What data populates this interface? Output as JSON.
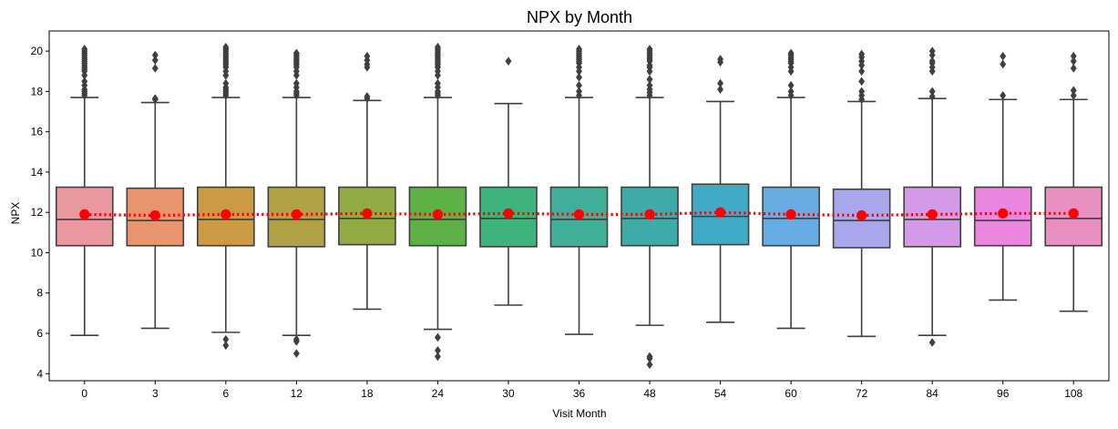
{
  "chart_data": {
    "type": "box",
    "title": "NPX by Month",
    "xlabel": "Visit Month",
    "ylabel": "NPX",
    "ylim": [
      3.65,
      21.0
    ],
    "yticks": [
      4,
      6,
      8,
      10,
      12,
      14,
      16,
      18,
      20
    ],
    "ytick_labels": [
      "4",
      "6",
      "8",
      "10",
      "12",
      "14",
      "16",
      "18",
      "20"
    ],
    "categories": [
      "0",
      "3",
      "6",
      "12",
      "18",
      "24",
      "30",
      "36",
      "48",
      "54",
      "60",
      "72",
      "84",
      "96",
      "108"
    ],
    "colors": [
      "#EA97A0",
      "#E8956F",
      "#CB9A45",
      "#B0A147",
      "#93AB44",
      "#5EB245",
      "#3EB37B",
      "#40AF99",
      "#3EABA9",
      "#40ABC5",
      "#67ADE4",
      "#A9A7EC",
      "#D49AE8",
      "#EB86DF",
      "#E890C0"
    ],
    "boxes": [
      {
        "q1": 10.35,
        "median": 11.65,
        "q3": 13.25,
        "whisker_low": 5.9,
        "whisker_high": 17.7,
        "mean": 11.9,
        "outliers": [
          17.8,
          17.9,
          18.0,
          18.1,
          18.3,
          18.5,
          18.8,
          19.0,
          19.1,
          19.2,
          19.3,
          19.4,
          19.5,
          19.6,
          19.7,
          19.8,
          19.9,
          20.0,
          20.1
        ]
      },
      {
        "q1": 10.35,
        "median": 11.6,
        "q3": 13.2,
        "whisker_low": 6.25,
        "whisker_high": 17.45,
        "mean": 11.85,
        "outliers": [
          17.6,
          17.65,
          19.15,
          19.55,
          19.8
        ]
      },
      {
        "q1": 10.35,
        "median": 11.65,
        "q3": 13.25,
        "whisker_low": 6.05,
        "whisker_high": 17.7,
        "mean": 11.9,
        "outliers": [
          5.4,
          5.7,
          17.8,
          17.9,
          18.0,
          18.1,
          18.2,
          18.4,
          18.8,
          19.0,
          19.2,
          19.3,
          19.4,
          19.5,
          19.6,
          19.7,
          19.8,
          19.9,
          20.0,
          20.1,
          20.2
        ]
      },
      {
        "q1": 10.3,
        "median": 11.65,
        "q3": 13.25,
        "whisker_low": 5.9,
        "whisker_high": 17.7,
        "mean": 11.9,
        "outliers": [
          5.0,
          5.6,
          5.7,
          17.8,
          17.9,
          18.0,
          18.2,
          18.4,
          18.8,
          19.0,
          19.2,
          19.3,
          19.4,
          19.5,
          19.6,
          19.7,
          19.8,
          19.9
        ]
      },
      {
        "q1": 10.4,
        "median": 11.7,
        "q3": 13.25,
        "whisker_low": 7.2,
        "whisker_high": 17.55,
        "mean": 11.95,
        "outliers": [
          17.65,
          17.75,
          19.2,
          19.35,
          19.55,
          19.75
        ]
      },
      {
        "q1": 10.35,
        "median": 11.65,
        "q3": 13.25,
        "whisker_low": 6.2,
        "whisker_high": 17.7,
        "mean": 11.9,
        "outliers": [
          4.85,
          5.15,
          5.8,
          17.8,
          17.9,
          18.0,
          18.2,
          18.4,
          18.8,
          19.0,
          19.2,
          19.3,
          19.4,
          19.5,
          19.6,
          19.7,
          19.8,
          19.9,
          20.0,
          20.1,
          20.2
        ]
      },
      {
        "q1": 10.3,
        "median": 11.7,
        "q3": 13.25,
        "whisker_low": 7.4,
        "whisker_high": 17.4,
        "mean": 11.95,
        "outliers": [
          19.5
        ]
      },
      {
        "q1": 10.3,
        "median": 11.65,
        "q3": 13.25,
        "whisker_low": 5.95,
        "whisker_high": 17.7,
        "mean": 11.9,
        "outliers": [
          17.8,
          18.0,
          18.3,
          18.7,
          19.0,
          19.2,
          19.4,
          19.5,
          19.6,
          19.7,
          19.8,
          19.9,
          20.0,
          20.1
        ]
      },
      {
        "q1": 10.35,
        "median": 11.7,
        "q3": 13.25,
        "whisker_low": 6.4,
        "whisker_high": 17.7,
        "mean": 11.9,
        "outliers": [
          4.45,
          4.75,
          4.85,
          17.8,
          17.95,
          18.1,
          18.3,
          18.6,
          19.0,
          19.2,
          19.3,
          19.5,
          19.6,
          19.7,
          19.8,
          19.9,
          20.0,
          20.1
        ]
      },
      {
        "q1": 10.4,
        "median": 11.8,
        "q3": 13.4,
        "whisker_low": 6.55,
        "whisker_high": 17.5,
        "mean": 12.0,
        "outliers": [
          18.1,
          18.4,
          19.45,
          19.6
        ]
      },
      {
        "q1": 10.35,
        "median": 11.7,
        "q3": 13.25,
        "whisker_low": 6.25,
        "whisker_high": 17.7,
        "mean": 11.9,
        "outliers": [
          17.8,
          18.0,
          18.3,
          19.0,
          19.2,
          19.4,
          19.5,
          19.6,
          19.7,
          19.8,
          19.9
        ]
      },
      {
        "q1": 10.25,
        "median": 11.6,
        "q3": 13.15,
        "whisker_low": 5.85,
        "whisker_high": 17.5,
        "mean": 11.85,
        "outliers": [
          17.6,
          17.8,
          18.0,
          18.5,
          19.0,
          19.3,
          19.5,
          19.7,
          19.85
        ]
      },
      {
        "q1": 10.3,
        "median": 11.65,
        "q3": 13.25,
        "whisker_low": 5.9,
        "whisker_high": 17.65,
        "mean": 11.9,
        "outliers": [
          5.55,
          17.75,
          18.0,
          19.0,
          19.2,
          19.4,
          19.5,
          19.8,
          20.0
        ]
      },
      {
        "q1": 10.35,
        "median": 11.6,
        "q3": 13.25,
        "whisker_low": 7.65,
        "whisker_high": 17.6,
        "mean": 11.95,
        "outliers": [
          17.8,
          19.35,
          19.75
        ]
      },
      {
        "q1": 10.35,
        "median": 11.7,
        "q3": 13.25,
        "whisker_low": 7.1,
        "whisker_high": 17.6,
        "mean": 11.95,
        "outliers": [
          17.8,
          18.05,
          19.15,
          19.5,
          19.75
        ]
      }
    ],
    "mean_line": {
      "color": "#FF0000",
      "style": "dotted",
      "marker": "circle"
    },
    "grid": false,
    "box_edge_color": "#3F3F3F"
  }
}
